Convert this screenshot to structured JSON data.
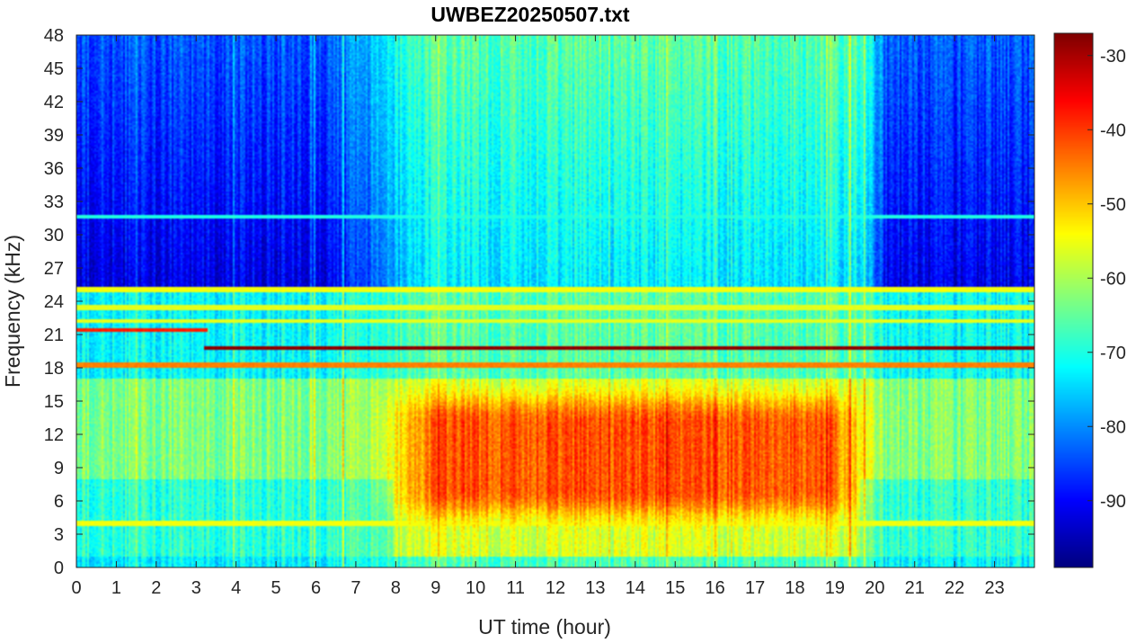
{
  "chart_data": {
    "type": "heatmap",
    "title": "UWBEZ20250507.txt",
    "xlabel": "UT time (hour)",
    "ylabel": "Frequency (kHz)",
    "xlim": [
      0,
      24
    ],
    "ylim": [
      0,
      48
    ],
    "x_ticks": [
      0,
      1,
      2,
      3,
      4,
      5,
      6,
      7,
      8,
      9,
      10,
      11,
      12,
      13,
      14,
      15,
      16,
      17,
      18,
      19,
      20,
      21,
      22,
      23
    ],
    "y_ticks": [
      0,
      3,
      6,
      9,
      12,
      15,
      18,
      21,
      24,
      27,
      30,
      33,
      36,
      39,
      42,
      45,
      48
    ],
    "colorbar": {
      "colormap": "jet",
      "range": [
        -99,
        -27
      ],
      "ticks": [
        -90,
        -80,
        -70,
        -60,
        -50,
        -40,
        -30
      ]
    },
    "grid": false,
    "features": {
      "background_high_freq": {
        "freq_range_khz": [
          25,
          48
        ],
        "night_level_db": -88,
        "day_level_db": -70
      },
      "broadband_emission": {
        "freq_range_khz": [
          3,
          17
        ],
        "time_range_hour": [
          8.5,
          20
        ],
        "peak_level_db": -42
      },
      "transmitter_lines": [
        {
          "freq_khz": 19.8,
          "time_range_hour": [
            3.2,
            24
          ],
          "level_db": -28
        },
        {
          "freq_khz": 21.4,
          "time_range_hour": [
            0,
            3.3
          ],
          "level_db": -38
        },
        {
          "freq_khz": 18.2,
          "time_range_hour": [
            0,
            24
          ],
          "level_db": -45
        },
        {
          "freq_khz": 25.0,
          "time_range_hour": [
            0,
            24
          ],
          "level_db": -55
        },
        {
          "freq_khz": 23.4,
          "time_range_hour": [
            0,
            24
          ],
          "level_db": -56
        },
        {
          "freq_khz": 22.2,
          "time_range_hour": [
            0,
            24
          ],
          "level_db": -56
        },
        {
          "freq_khz": 4.0,
          "time_range_hour": [
            0,
            24
          ],
          "level_db": -55
        },
        {
          "freq_khz": 31.6,
          "time_range_hour": [
            0,
            24
          ],
          "level_db": -70
        }
      ]
    }
  },
  "colors": {
    "axis": "#262626",
    "title": "#000000",
    "jet": [
      "#00008f",
      "#0000ff",
      "#00ffff",
      "#ffff00",
      "#ff0000",
      "#800000"
    ]
  }
}
